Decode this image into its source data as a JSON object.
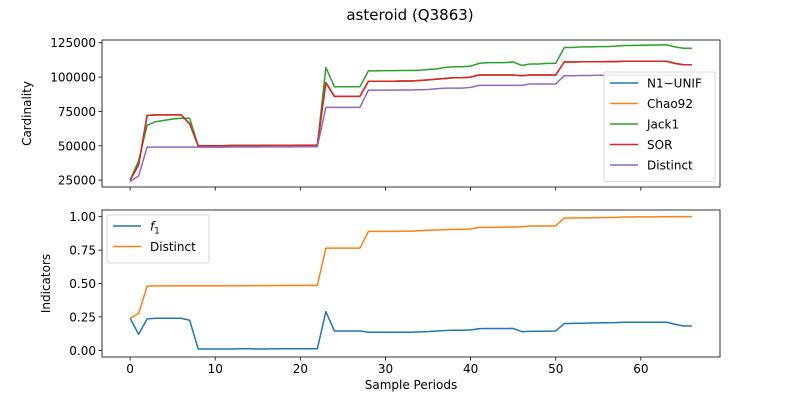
{
  "figure": {
    "title": "asteroid (Q3863)"
  },
  "chart_data": [
    {
      "type": "line",
      "title": "",
      "xlabel": "",
      "ylabel": "Cardinality",
      "xlim": [
        -3.3,
        69.3
      ],
      "ylim": [
        20000,
        127000
      ],
      "xticks": [
        0,
        10,
        20,
        30,
        40,
        50,
        60
      ],
      "yticks": [
        25000,
        50000,
        75000,
        100000,
        125000
      ],
      "ytick_labels": [
        "25000",
        "50000",
        "75000",
        "100000",
        "125000"
      ],
      "show_x_tick_labels": false,
      "grid": false,
      "legend": "right",
      "x": [
        0,
        1,
        2,
        3,
        4,
        5,
        6,
        7,
        8,
        9,
        10,
        11,
        12,
        13,
        14,
        15,
        16,
        17,
        18,
        19,
        20,
        21,
        22,
        23,
        24,
        25,
        26,
        27,
        28,
        29,
        30,
        31,
        32,
        33,
        34,
        35,
        36,
        37,
        38,
        39,
        40,
        41,
        42,
        43,
        44,
        45,
        46,
        47,
        48,
        49,
        50,
        51,
        52,
        53,
        54,
        55,
        56,
        57,
        58,
        59,
        60,
        61,
        62,
        63,
        64,
        65,
        66
      ],
      "series": [
        {
          "name": "N1−UNIF",
          "color": "#1f77b4",
          "values": [
            25000,
            36000,
            72000,
            72500,
            72500,
            72500,
            72500,
            66000,
            50000,
            50000,
            50000,
            50000,
            50200,
            50200,
            50200,
            50200,
            50300,
            50300,
            50300,
            50300,
            50400,
            50400,
            50500,
            96000,
            86000,
            86000,
            86000,
            86000,
            97000,
            97000,
            97000,
            97000,
            97200,
            97200,
            97500,
            98000,
            98500,
            99000,
            99500,
            99500,
            100000,
            101500,
            101500,
            101500,
            101500,
            101500,
            101000,
            101500,
            101500,
            101500,
            101500,
            111000,
            111000,
            111200,
            111200,
            111200,
            111300,
            111300,
            111500,
            111500,
            111500,
            111500,
            111500,
            111500,
            110000,
            109000,
            109000
          ]
        },
        {
          "name": "Chao92",
          "color": "#ff7f0e",
          "values": [
            25000,
            36000,
            72000,
            72500,
            72500,
            72500,
            72500,
            66000,
            50000,
            50000,
            50000,
            50000,
            50200,
            50200,
            50200,
            50200,
            50300,
            50300,
            50300,
            50300,
            50400,
            50400,
            50500,
            96000,
            86000,
            86000,
            86000,
            86000,
            97000,
            97000,
            97000,
            97000,
            97200,
            97200,
            97500,
            98000,
            98500,
            99000,
            99500,
            99500,
            100000,
            101500,
            101500,
            101500,
            101500,
            101500,
            101000,
            101500,
            101500,
            101500,
            101500,
            111000,
            111000,
            111200,
            111200,
            111200,
            111300,
            111300,
            111500,
            111500,
            111500,
            111500,
            111500,
            111500,
            110000,
            109000,
            109000
          ]
        },
        {
          "name": "Jack1",
          "color": "#2ca02c",
          "values": [
            25000,
            39000,
            65000,
            67500,
            68500,
            69500,
            70000,
            70000,
            50000,
            50000,
            50000,
            50000,
            50300,
            50300,
            50300,
            50300,
            50300,
            50400,
            50400,
            50400,
            50500,
            50500,
            50600,
            107000,
            93000,
            93000,
            93000,
            93000,
            104500,
            104500,
            104700,
            104700,
            104800,
            104800,
            105000,
            105500,
            106000,
            107000,
            107500,
            107500,
            108000,
            110000,
            110500,
            110500,
            110500,
            111000,
            108500,
            109500,
            109500,
            110000,
            110000,
            121500,
            121500,
            122000,
            122000,
            122200,
            122200,
            122500,
            123000,
            123000,
            123200,
            123300,
            123400,
            123500,
            122000,
            121000,
            121000
          ]
        },
        {
          "name": "SOR",
          "color": "#d62728",
          "values": [
            25000,
            36000,
            72000,
            72500,
            72500,
            72500,
            72500,
            66000,
            50000,
            50000,
            50000,
            50000,
            50200,
            50200,
            50200,
            50200,
            50300,
            50300,
            50300,
            50300,
            50400,
            50400,
            50500,
            96000,
            86000,
            86000,
            86000,
            86000,
            97000,
            97000,
            97000,
            97000,
            97200,
            97200,
            97500,
            98000,
            98500,
            99000,
            99500,
            99500,
            100000,
            101500,
            101500,
            101500,
            101500,
            101500,
            101000,
            101500,
            101500,
            101500,
            101500,
            111000,
            111000,
            111200,
            111200,
            111200,
            111300,
            111300,
            111500,
            111500,
            111500,
            111500,
            111500,
            111500,
            110000,
            109000,
            109000
          ]
        },
        {
          "name": "Distinct",
          "color": "#9467bd",
          "values": [
            24000,
            28000,
            49000,
            49000,
            49000,
            49000,
            49000,
            49000,
            49000,
            49000,
            49000,
            49000,
            49100,
            49100,
            49100,
            49100,
            49200,
            49200,
            49200,
            49200,
            49300,
            49300,
            49300,
            78000,
            78000,
            78000,
            78000,
            78000,
            90500,
            90500,
            90500,
            90500,
            90600,
            90600,
            90800,
            91000,
            91500,
            92000,
            92000,
            92000,
            92500,
            94000,
            94000,
            94000,
            94000,
            94000,
            94000,
            95000,
            95000,
            95000,
            95000,
            101000,
            101000,
            101200,
            101200,
            101300,
            101300,
            101400,
            101500,
            101500,
            101500,
            101500,
            101500,
            101500,
            101500,
            101500,
            101500
          ]
        }
      ]
    },
    {
      "type": "line",
      "title": "",
      "xlabel": "Sample Periods",
      "ylabel": "Indicators",
      "xlim": [
        -3.3,
        69.3
      ],
      "ylim": [
        -0.05,
        1.05
      ],
      "xticks": [
        0,
        10,
        20,
        30,
        40,
        50,
        60
      ],
      "xtick_labels": [
        "0",
        "10",
        "20",
        "30",
        "40",
        "50",
        "60"
      ],
      "yticks": [
        0,
        0.25,
        0.5,
        0.75,
        1.0
      ],
      "ytick_labels": [
        "0.00",
        "0.25",
        "0.50",
        "0.75",
        "1.00"
      ],
      "grid": false,
      "legend": "upper-left",
      "x": [
        0,
        1,
        2,
        3,
        4,
        5,
        6,
        7,
        8,
        9,
        10,
        11,
        12,
        13,
        14,
        15,
        16,
        17,
        18,
        19,
        20,
        21,
        22,
        23,
        24,
        25,
        26,
        27,
        28,
        29,
        30,
        31,
        32,
        33,
        34,
        35,
        36,
        37,
        38,
        39,
        40,
        41,
        42,
        43,
        44,
        45,
        46,
        47,
        48,
        49,
        50,
        51,
        52,
        53,
        54,
        55,
        56,
        57,
        58,
        59,
        60,
        61,
        62,
        63,
        64,
        65,
        66
      ],
      "series": [
        {
          "name": "f",
          "name_sub": "1",
          "color": "#1f77b4",
          "values": [
            0.24,
            0.12,
            0.235,
            0.24,
            0.24,
            0.24,
            0.24,
            0.225,
            0.01,
            0.01,
            0.01,
            0.01,
            0.01,
            0.012,
            0.012,
            0.01,
            0.01,
            0.012,
            0.012,
            0.012,
            0.012,
            0.012,
            0.012,
            0.29,
            0.145,
            0.145,
            0.145,
            0.145,
            0.135,
            0.135,
            0.135,
            0.135,
            0.135,
            0.135,
            0.138,
            0.14,
            0.145,
            0.148,
            0.15,
            0.15,
            0.152,
            0.162,
            0.163,
            0.163,
            0.163,
            0.164,
            0.14,
            0.142,
            0.143,
            0.143,
            0.145,
            0.2,
            0.202,
            0.203,
            0.204,
            0.205,
            0.206,
            0.207,
            0.21,
            0.21,
            0.21,
            0.21,
            0.21,
            0.211,
            0.195,
            0.182,
            0.182
          ]
        },
        {
          "name": "Distinct",
          "color": "#ff7f0e",
          "values": [
            0.24,
            0.275,
            0.48,
            0.482,
            0.482,
            0.482,
            0.482,
            0.482,
            0.482,
            0.482,
            0.482,
            0.482,
            0.483,
            0.483,
            0.483,
            0.484,
            0.484,
            0.485,
            0.485,
            0.485,
            0.485,
            0.486,
            0.486,
            0.765,
            0.765,
            0.765,
            0.765,
            0.765,
            0.89,
            0.89,
            0.89,
            0.89,
            0.892,
            0.892,
            0.895,
            0.898,
            0.9,
            0.903,
            0.905,
            0.905,
            0.908,
            0.92,
            0.92,
            0.92,
            0.922,
            0.923,
            0.925,
            0.93,
            0.93,
            0.93,
            0.932,
            0.99,
            0.99,
            0.991,
            0.992,
            0.993,
            0.994,
            0.995,
            0.998,
            0.998,
            0.999,
            0.999,
            0.999,
            1.0,
            1.0,
            1.0,
            1.0
          ]
        }
      ]
    }
  ]
}
